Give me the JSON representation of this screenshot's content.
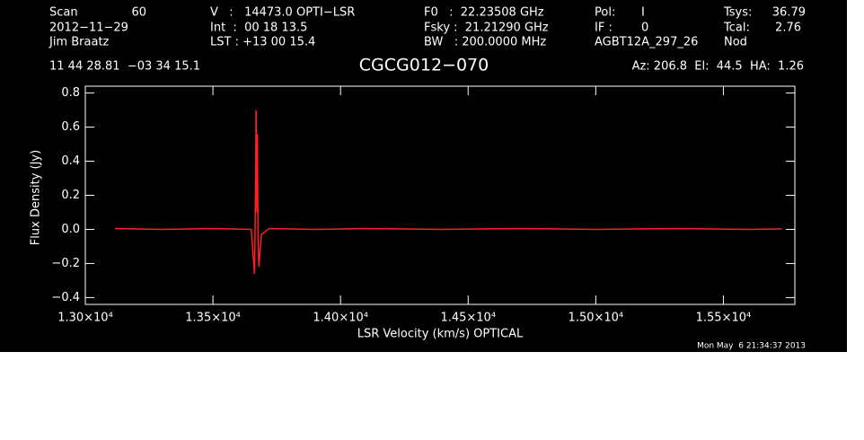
{
  "chart_data": {
    "type": "line",
    "title": "CGCG012−070",
    "x_label": "LSR Velocity (km/s) OPTICAL",
    "y_label": "Flux Density (Jy)",
    "annotations": [
      "Scan",
      "60",
      "2012−11−29",
      "Jim Braatz",
      "V   :   14473.0 OPTI−LSR",
      "Int  :  00 18 13.5",
      "LST : +13 00 15.4",
      "F0   :  22.23508 GHz",
      "Fsky :  21.21290 GHz",
      "BW   : 200.0000 MHz",
      "Pol:",
      "I",
      "IF :",
      "0",
      "AGBT12A_297_26",
      "Tsys:",
      "36.79",
      "Tcal:",
      "2.76",
      "Nod",
      "11 44 28.81  −03 34 15.1",
      "Az: 206.8  El:  44.5  HA:  1.26",
      "Mon May  6 21:34:37 2013"
    ],
    "x": [
      13116,
      13300,
      13500,
      13650,
      13663,
      13666,
      13669,
      13672,
      13674,
      13677,
      13680,
      13690,
      13720,
      13900,
      14100,
      14400,
      14700,
      15000,
      15300,
      15600,
      15729
    ],
    "series": [
      {
        "color": "#ff2020",
        "values": [
          0.005,
          0.0,
          0.005,
          0.0,
          -0.26,
          0.1,
          0.7,
          0.1,
          0.56,
          -0.05,
          -0.22,
          -0.03,
          0.005,
          0.0,
          0.005,
          0.0,
          0.005,
          0.0,
          0.005,
          0.0,
          0.003
        ]
      }
    ],
    "xlim": [
      13000,
      15780
    ],
    "ylim": [
      -0.44,
      0.84
    ],
    "xticks": [
      {
        "value": 13000,
        "label": "1.30×10⁴"
      },
      {
        "value": 13500,
        "label": "1.35×10⁴"
      },
      {
        "value": 14000,
        "label": "1.40×10⁴"
      },
      {
        "value": 14500,
        "label": "1.45×10⁴"
      },
      {
        "value": 15000,
        "label": "1.50×10⁴"
      },
      {
        "value": 15500,
        "label": "1.55×10⁴"
      }
    ],
    "yticks": [
      {
        "value": -0.4,
        "label": "−0.4"
      },
      {
        "value": -0.2,
        "label": "−0.2"
      },
      {
        "value": 0,
        "label": "0.0"
      },
      {
        "value": 0.2,
        "label": "0.2"
      },
      {
        "value": 0.4,
        "label": "0.4"
      },
      {
        "value": 0.6,
        "label": "0.6"
      },
      {
        "value": 0.8,
        "label": "0.8"
      }
    ]
  }
}
